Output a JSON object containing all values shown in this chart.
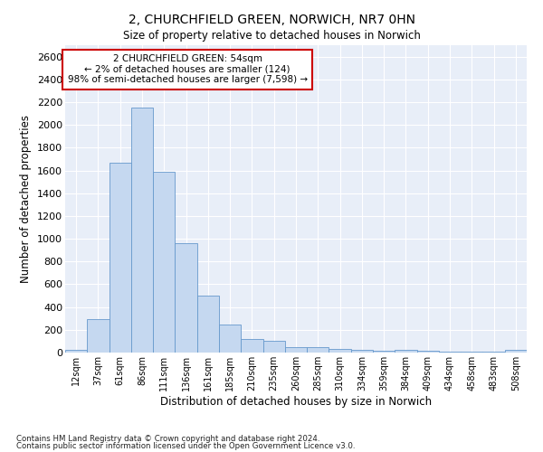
{
  "title": "2, CHURCHFIELD GREEN, NORWICH, NR7 0HN",
  "subtitle": "Size of property relative to detached houses in Norwich",
  "xlabel": "Distribution of detached houses by size in Norwich",
  "ylabel": "Number of detached properties",
  "bar_color": "#c5d8f0",
  "bar_edge_color": "#6699cc",
  "background_color": "#e8eef8",
  "grid_color": "#ffffff",
  "categories": [
    "12sqm",
    "37sqm",
    "61sqm",
    "86sqm",
    "111sqm",
    "136sqm",
    "161sqm",
    "185sqm",
    "210sqm",
    "235sqm",
    "260sqm",
    "285sqm",
    "310sqm",
    "334sqm",
    "359sqm",
    "384sqm",
    "409sqm",
    "434sqm",
    "458sqm",
    "483sqm",
    "508sqm"
  ],
  "values": [
    25,
    295,
    1670,
    2150,
    1590,
    960,
    500,
    250,
    120,
    100,
    50,
    45,
    35,
    20,
    15,
    25,
    15,
    10,
    5,
    5,
    25
  ],
  "ylim": [
    0,
    2700
  ],
  "yticks": [
    0,
    200,
    400,
    600,
    800,
    1000,
    1200,
    1400,
    1600,
    1800,
    2000,
    2200,
    2400,
    2600
  ],
  "annotation_text": "2 CHURCHFIELD GREEN: 54sqm\n← 2% of detached houses are smaller (124)\n98% of semi-detached houses are larger (7,598) →",
  "annotation_box_color": "#ffffff",
  "annotation_box_edge": "#cc0000",
  "footnote1": "Contains HM Land Registry data © Crown copyright and database right 2024.",
  "footnote2": "Contains public sector information licensed under the Open Government Licence v3.0."
}
